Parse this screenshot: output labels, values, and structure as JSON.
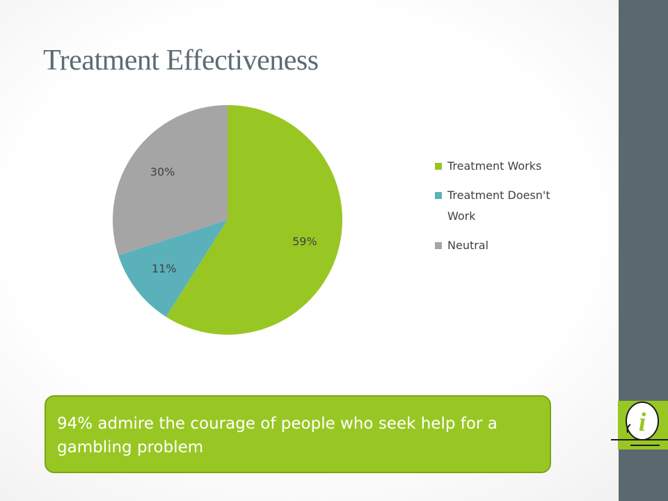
{
  "slide": {
    "title": "Treatment Effectiveness",
    "callout_text": "94% admire the courage of people who seek help for a gambling problem",
    "info_icon": "info-icon",
    "colors": {
      "accent_green": "#98c723",
      "side_bar": "#5a6870",
      "title": "#5b6b73"
    }
  },
  "chart_data": {
    "type": "pie",
    "title": "",
    "slices": [
      {
        "name": "Treatment Works",
        "value": 59,
        "label": "59%",
        "color": "#98c723"
      },
      {
        "name": "Treatment Doesn't Work",
        "value": 11,
        "label": "11%",
        "color": "#5bb1ba"
      },
      {
        "name": "Neutral",
        "value": 30,
        "label": "30%",
        "color": "#a5a5a5"
      }
    ],
    "legend": {
      "position": "right",
      "entries": [
        "Treatment Works",
        "Treatment Doesn't Work",
        "Neutral"
      ]
    }
  }
}
